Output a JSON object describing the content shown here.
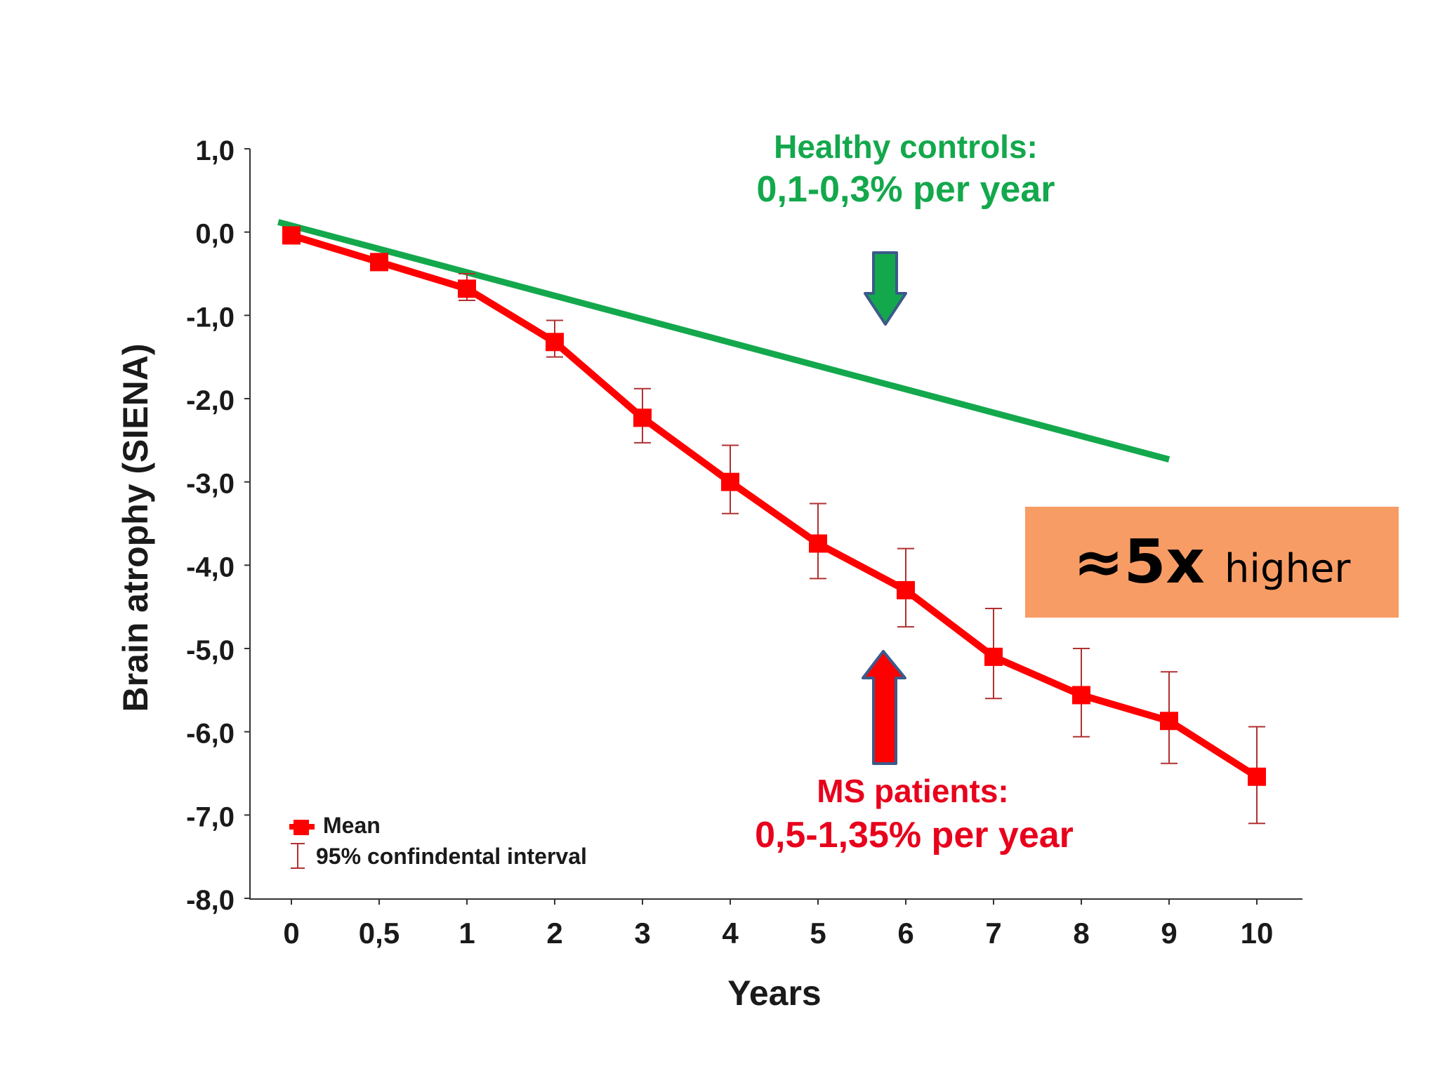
{
  "chart_data": {
    "type": "line",
    "xlabel": "Years",
    "ylabel": "Brain atrophy (SIENA)",
    "categories": [
      "0",
      "0,5",
      "1",
      "2",
      "3",
      "4",
      "5",
      "6",
      "7",
      "8",
      "9",
      "10"
    ],
    "yticks": [
      "1,0",
      "0,0",
      "-1,0",
      "-2,0",
      "-3,0",
      "-4,0",
      "-5,0",
      "-6,0",
      "-7,0",
      "-8,0"
    ],
    "ylim": [
      -8,
      1
    ],
    "grid": false,
    "legend_position": "bottom-left",
    "series": [
      {
        "name": "Mean",
        "color": "#ff0000",
        "values": [
          -0.04,
          -0.36,
          -0.68,
          -1.32,
          -2.23,
          -3.0,
          -3.74,
          -4.3,
          -5.1,
          -5.56,
          -5.87,
          -6.54
        ],
        "ci_low": [
          -0.08,
          -0.46,
          -0.82,
          -1.5,
          -2.53,
          -3.38,
          -4.16,
          -4.74,
          -5.6,
          -6.06,
          -6.38,
          -7.1
        ],
        "ci_high": [
          0.0,
          -0.26,
          -0.5,
          -1.06,
          -1.88,
          -2.56,
          -3.26,
          -3.8,
          -4.52,
          -5.0,
          -5.28,
          -5.94
        ]
      },
      {
        "name": "",
        "color": "#13a84c",
        "x": [
          "-0,15",
          "10"
        ],
        "values": [
          0.12,
          -2.73
        ]
      }
    ],
    "legend": [
      "Mean",
      "95% confindental interval"
    ],
    "annotations": {
      "healthy_title": "Healthy controls:",
      "healthy_rate": "0,1-0,3% per year",
      "ms_title": "MS patients:",
      "ms_rate": "0,5-1,35% per year",
      "ratio_value": "≈5x",
      "ratio_text": "higher"
    }
  },
  "colors": {
    "ratio_box": "#f89c66",
    "arrow_green": "#13a84c",
    "arrow_red": "#ff0000",
    "arrow_outline": "#3b5a8a"
  }
}
